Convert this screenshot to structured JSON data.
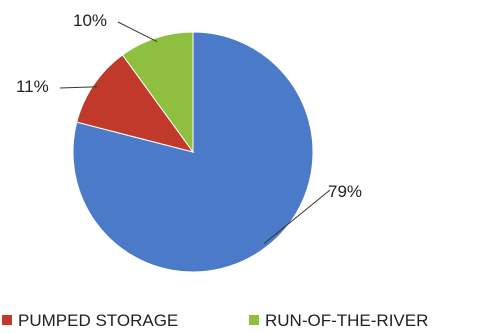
{
  "chart_data": {
    "type": "pie",
    "title": "",
    "slices": [
      {
        "name": "",
        "value": 79,
        "label": "79%",
        "color": "#4a7ac8"
      },
      {
        "name": "PUMPED STORAGE",
        "value": 11,
        "label": "11%",
        "color": "#c0392b"
      },
      {
        "name": "RUN-OF-THE-RIVER",
        "value": 10,
        "label": "10%",
        "color": "#8fbf3f"
      }
    ],
    "legend_position": "bottom"
  }
}
